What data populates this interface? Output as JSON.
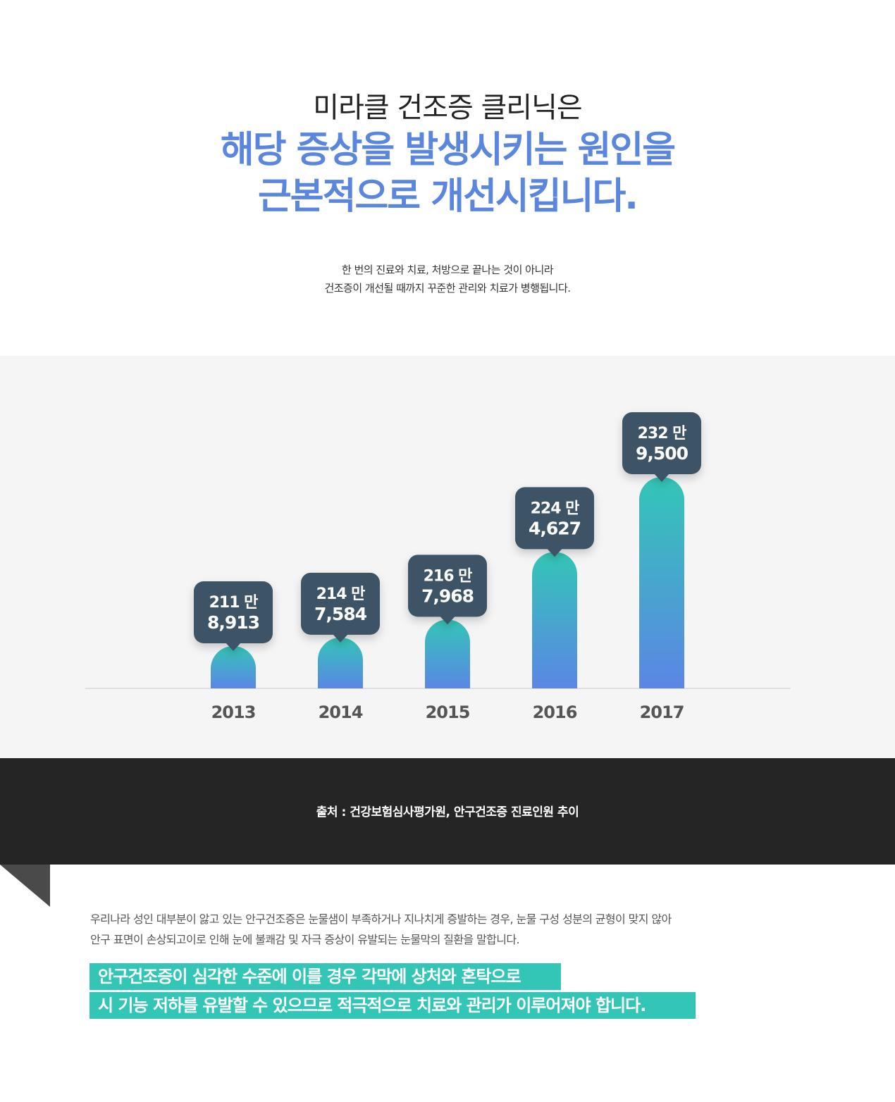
{
  "hero": {
    "sub_heading": "미라클 건조증 클리닉은",
    "main_heading_line1": "해당 증상을 발생시키는 원인을",
    "main_heading_line2": "근본적으로 개선시킵니다.",
    "desc_line1": "한 번의 진료와 치료, 처방으로 끝나는 것이 아니라",
    "desc_line2": "건조증이 개선될 때까지 꾸준한 관리와 치료가 병행됩니다."
  },
  "chart_data": {
    "type": "bar",
    "categories": [
      "2013",
      "2014",
      "2015",
      "2016",
      "2017"
    ],
    "values": [
      2118913,
      2147584,
      2167968,
      2244627,
      2329500
    ],
    "labels_line1": [
      "211 만",
      "214 만",
      "216 만",
      "224 만",
      "232 만"
    ],
    "labels_line2": [
      "8,913",
      "7,584",
      "7,968",
      "4,627",
      "9,500"
    ],
    "title": "",
    "xlabel": "",
    "ylabel": "",
    "grid": false,
    "colors": {
      "bar_top": "#33c6b6",
      "bar_bottom": "#5b86e5",
      "label_bg": "#3e5266",
      "axis": "#cccccc",
      "tick_text": "#555555"
    }
  },
  "source": {
    "text": "출처 : 건강보험심사평가원, 안구건조증 진료인원 추이"
  },
  "body": {
    "paragraph_line1": "우리나라 성인 대부분이 앓고 있는 안구건조증은 눈물샘이 부족하거나 지나치게 증발하는 경우, 눈물 구성 성분의 균형이 맞지 않아",
    "paragraph_line2": "안구 표면이 손상되고이로 인해 눈에 불쾌감 및 자극 증상이 유발되는 눈물막의 질환을 말합니다.",
    "highlight_line1": "안구건조증이 심각한 수준에 이를 경우 각막에 상처와 혼탁으로",
    "highlight_line2": "시 기능 저하를 유발할 수 있으므로 적극적으로 치료와 관리가 이루어져야 합니다."
  }
}
